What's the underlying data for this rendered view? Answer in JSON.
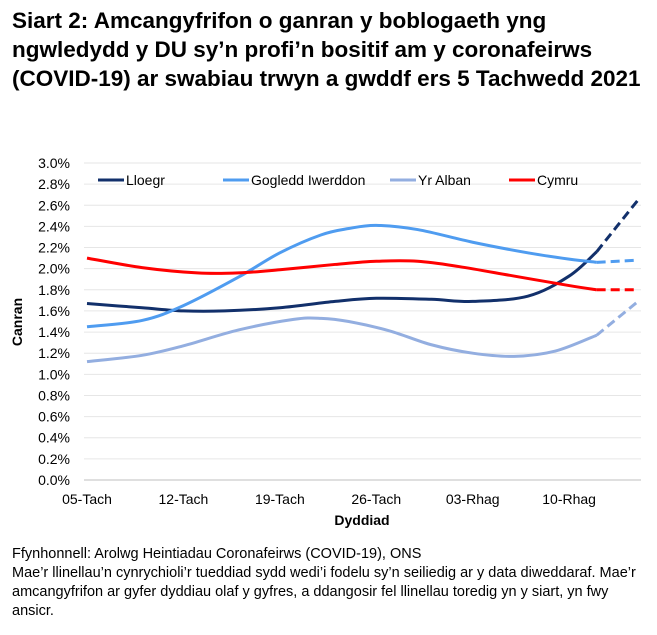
{
  "chart_data": {
    "type": "line",
    "title": "Siart 2: Amcangyfrifon o ganran y boblogaeth yng ngwledydd y DU sy’n profi’n bositif am y coronafeirws (COVID-19) ar swabiau trwyn a gwddf ers 5 Tachwedd 2021",
    "xlabel": "Dyddiad",
    "ylabel": "Canran",
    "ylim": [
      0,
      3.0
    ],
    "yticks": [
      "0.0%",
      "0.2%",
      "0.4%",
      "0.6%",
      "0.8%",
      "1.0%",
      "1.2%",
      "1.4%",
      "1.6%",
      "1.8%",
      "2.0%",
      "2.2%",
      "2.4%",
      "2.6%",
      "2.8%",
      "3.0%"
    ],
    "xticks": [
      {
        "date": "2021-11-05",
        "label": "05-Tach"
      },
      {
        "date": "2021-11-12",
        "label": "12-Tach"
      },
      {
        "date": "2021-11-19",
        "label": "19-Tach"
      },
      {
        "date": "2021-11-26",
        "label": "26-Tach"
      },
      {
        "date": "2021-12-03",
        "label": "03-Rhag"
      },
      {
        "date": "2021-12-10",
        "label": "10-Rhag"
      }
    ],
    "xrange": [
      "2021-11-05",
      "2021-12-15"
    ],
    "dashed_from": "2021-12-12",
    "grid": true,
    "legend": "top",
    "series": [
      {
        "name": "Lloegr",
        "color": "#12306b",
        "points": [
          [
            "2021-11-05",
            1.67
          ],
          [
            "2021-11-09",
            1.63
          ],
          [
            "2021-11-12",
            1.6
          ],
          [
            "2021-11-15",
            1.6
          ],
          [
            "2021-11-19",
            1.63
          ],
          [
            "2021-11-23",
            1.69
          ],
          [
            "2021-11-26",
            1.72
          ],
          [
            "2021-11-30",
            1.71
          ],
          [
            "2021-12-03",
            1.69
          ],
          [
            "2021-12-07",
            1.74
          ],
          [
            "2021-12-10",
            1.93
          ],
          [
            "2021-12-12",
            2.16
          ],
          [
            "2021-12-15",
            2.65
          ]
        ]
      },
      {
        "name": "Gogledd Iwerddon",
        "color": "#4f9cf0",
        "points": [
          [
            "2021-11-05",
            1.45
          ],
          [
            "2021-11-09",
            1.51
          ],
          [
            "2021-11-12",
            1.65
          ],
          [
            "2021-11-16",
            1.92
          ],
          [
            "2021-11-19",
            2.15
          ],
          [
            "2021-11-22",
            2.32
          ],
          [
            "2021-11-24",
            2.38
          ],
          [
            "2021-11-26",
            2.41
          ],
          [
            "2021-11-29",
            2.37
          ],
          [
            "2021-12-03",
            2.25
          ],
          [
            "2021-12-07",
            2.15
          ],
          [
            "2021-12-10",
            2.09
          ],
          [
            "2021-12-12",
            2.06
          ],
          [
            "2021-12-15",
            2.08
          ]
        ]
      },
      {
        "name": "Yr Alban",
        "color": "#93aee0",
        "points": [
          [
            "2021-11-05",
            1.12
          ],
          [
            "2021-11-09",
            1.18
          ],
          [
            "2021-11-12",
            1.27
          ],
          [
            "2021-11-16",
            1.42
          ],
          [
            "2021-11-20",
            1.52
          ],
          [
            "2021-11-22",
            1.53
          ],
          [
            "2021-11-24",
            1.5
          ],
          [
            "2021-11-27",
            1.41
          ],
          [
            "2021-11-30",
            1.28
          ],
          [
            "2021-12-03",
            1.2
          ],
          [
            "2021-12-06",
            1.17
          ],
          [
            "2021-12-09",
            1.22
          ],
          [
            "2021-12-12",
            1.37
          ],
          [
            "2021-12-15",
            1.69
          ]
        ]
      },
      {
        "name": "Cymru",
        "color": "#ff0000",
        "points": [
          [
            "2021-11-05",
            2.1
          ],
          [
            "2021-11-09",
            2.01
          ],
          [
            "2021-11-13",
            1.96
          ],
          [
            "2021-11-16",
            1.96
          ],
          [
            "2021-11-19",
            1.99
          ],
          [
            "2021-11-23",
            2.04
          ],
          [
            "2021-11-26",
            2.07
          ],
          [
            "2021-11-29",
            2.07
          ],
          [
            "2021-12-02",
            2.02
          ],
          [
            "2021-12-06",
            1.93
          ],
          [
            "2021-12-10",
            1.84
          ],
          [
            "2021-12-12",
            1.8
          ],
          [
            "2021-12-15",
            1.8
          ]
        ]
      }
    ]
  },
  "notes": {
    "source": "Ffynhonnell: Arolwg Heintiadau Coronafeirws (COVID-19), ONS",
    "note1": "Mae’r llinellau’n cynrychioli’r tueddiad sydd wedi’i fodelu sy’n seiliedig ar y data diweddaraf. Mae’r amcangyfrifon ar gyfer dyddiau olaf y gyfres, a ddangosir fel llinellau toredig yn y siart, yn fwy ansicr."
  }
}
